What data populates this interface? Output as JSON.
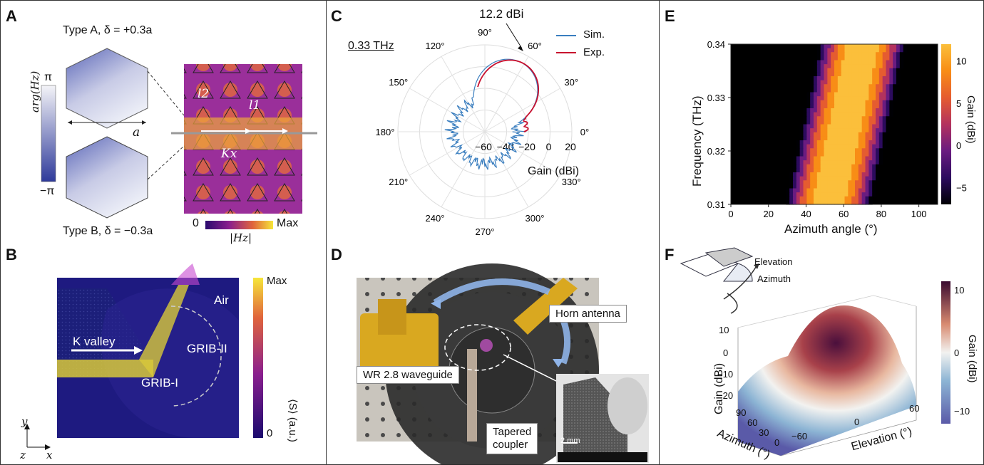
{
  "panels": {
    "A": {
      "label": "A",
      "type_a": "Type A,  δ = +0.3a",
      "type_b": "Type B,  δ = −0.3a",
      "phase_axis_title": "arg(Hz)",
      "phase_max": "π",
      "phase_min": "−π",
      "lattice_const": "a",
      "l2": "l2",
      "l1": "l1",
      "kx": "Kx",
      "cbar_min": "0",
      "cbar_max": "Max",
      "cbar_title": "|Hz|"
    },
    "B": {
      "label": "B",
      "air": "Air",
      "k_valley": "K valley",
      "grib2": "GRIB-II",
      "grib1": "GRIB-I",
      "cbar_max": "Max",
      "cbar_min": "0",
      "cbar_title": "⟨S⟩ (a.u.)",
      "axis_y": "y",
      "axis_z": "z",
      "axis_x": "x"
    },
    "C": {
      "label": "C",
      "freq": "0.33 THz",
      "peak": "12.2 dBi",
      "legend": [
        {
          "name": "Sim.",
          "color": "#3a7ebf"
        },
        {
          "name": "Exp.",
          "color": "#c8102e"
        }
      ],
      "angles": [
        "0°",
        "30°",
        "60°",
        "90°",
        "120°",
        "150°",
        "180°",
        "210°",
        "240°",
        "270°",
        "300°",
        "330°"
      ],
      "radial_ticks": [
        "−60",
        "−40",
        "−20",
        "0",
        "20"
      ],
      "gain_label": "Gain (dBi)"
    },
    "D": {
      "label": "D",
      "horn": "Horn antenna",
      "waveguide": "WR 2.8 waveguide",
      "coupler": "Tapered\ncoupler",
      "scale": "2 mm"
    },
    "E": {
      "label": "E",
      "ylabel": "Frequency (THz)",
      "xlabel": "Azimuth angle (°)",
      "yticks": [
        "0.34",
        "0.33",
        "0.32",
        "0.31"
      ],
      "xticks": [
        "0",
        "20",
        "40",
        "60",
        "80",
        "100"
      ],
      "cbar_ticks": [
        "10",
        "5",
        "0",
        "−5"
      ],
      "cbar_label": "Gain (dBi)"
    },
    "F": {
      "label": "F",
      "elevation": "Elevation",
      "azimuth": "Azimuth",
      "zlabel": "Gain (dBi)",
      "zticks": [
        "10",
        "0",
        "−10",
        "−20"
      ],
      "az_label": "Azimuth (°)",
      "az_ticks": [
        "90",
        "60",
        "30",
        "0"
      ],
      "el_label": "Elevation (°)",
      "el_ticks": [
        "−60",
        "0",
        "60"
      ],
      "cbar_ticks": [
        "10",
        "0",
        "−10"
      ],
      "cbar_label": "Gain (dBi)"
    }
  },
  "chart_data": [
    {
      "type": "line",
      "subtype": "polar",
      "title": "0.33 THz",
      "series": [
        {
          "name": "Sim.",
          "color": "#3a7ebf"
        },
        {
          "name": "Exp.",
          "color": "#c8102e"
        }
      ],
      "peak_gain_dbi": 12.2,
      "radial_range": [
        -60,
        20
      ],
      "radial_label": "Gain (dBi)"
    },
    {
      "type": "heatmap",
      "xlabel": "Azimuth angle (°)",
      "ylabel": "Frequency (THz)",
      "xlim": [
        0,
        110
      ],
      "ylim": [
        0.31,
        0.34
      ],
      "colorbar_range": [
        -7,
        12
      ],
      "colorbar_label": "Gain (dBi)"
    }
  ]
}
